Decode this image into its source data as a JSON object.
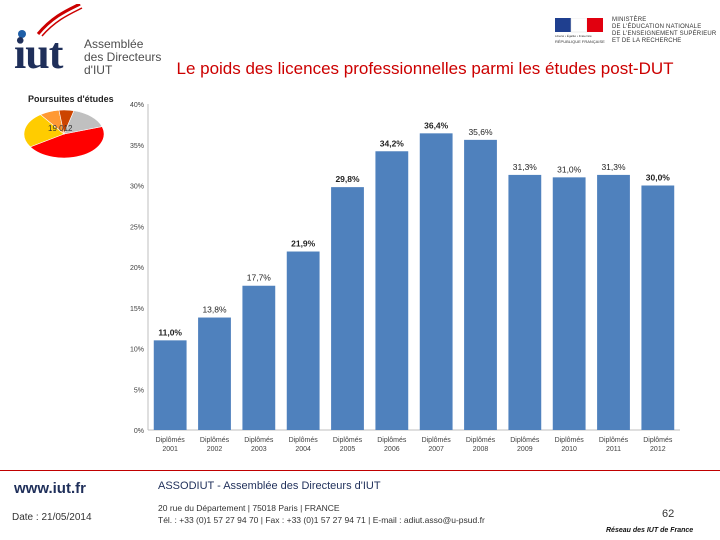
{
  "header": {
    "logo_text": "iut",
    "logo_lines": [
      "Assemblée",
      "des Directeurs",
      "d'IUT"
    ],
    "ministry_lines": [
      "MINISTÈRE",
      "DE L'ÉDUCATION NATIONALE",
      "DE L'ENSEIGNEMENT SUPÉRIEUR",
      "ET DE LA RECHERCHE"
    ],
    "ministry_sub": "Liberté • Égalité • Fraternité",
    "ministry_sub2": "RÉPUBLIQUE FRANÇAISE",
    "title": "Le poids des licences professionnelles parmi les études post-DUT"
  },
  "colors": {
    "bar": "#4f81bd",
    "title": "#cc0000",
    "footer_line": "#c00000"
  },
  "pie": {
    "title": "Poursuites d'études",
    "label": "19 012",
    "slices": [
      {
        "value": 46,
        "color": "#ff0000"
      },
      {
        "value": 24,
        "color": "#ffcc00"
      },
      {
        "value": 8,
        "color": "#ff9933"
      },
      {
        "value": 6,
        "color": "#cc4400"
      },
      {
        "value": 16,
        "color": "#c0c0c0"
      }
    ]
  },
  "chart_data": {
    "type": "bar",
    "title": "",
    "xlabel": "",
    "ylabel": "",
    "ylim": [
      0,
      40
    ],
    "yticks": [
      0,
      5,
      10,
      15,
      20,
      25,
      30,
      35,
      40
    ],
    "ytick_labels": [
      "0%",
      "5%",
      "10%",
      "15%",
      "20%",
      "25%",
      "30%",
      "35%",
      "40%"
    ],
    "categories": [
      [
        "Diplômés",
        "2001"
      ],
      [
        "Diplômés",
        "2002"
      ],
      [
        "Diplômés",
        "2003"
      ],
      [
        "Diplômés",
        "2004"
      ],
      [
        "Diplômés",
        "2005"
      ],
      [
        "Diplômés",
        "2006"
      ],
      [
        "Diplômés",
        "2007"
      ],
      [
        "Diplômés",
        "2008"
      ],
      [
        "Diplômés",
        "2009"
      ],
      [
        "Diplômés",
        "2010"
      ],
      [
        "Diplômés",
        "2011"
      ],
      [
        "Diplômés",
        "2012"
      ]
    ],
    "values": [
      11.0,
      13.8,
      17.7,
      21.9,
      29.8,
      34.2,
      36.4,
      35.6,
      31.3,
      31.0,
      31.3,
      30.0
    ],
    "labels": [
      "11,0%",
      "13,8%",
      "17,7%",
      "21,9%",
      "29,8%",
      "34,2%",
      "36,4%",
      "35,6%",
      "31,3%",
      "31,0%",
      "31,3%",
      "30,0%"
    ],
    "bold_labels": [
      true,
      false,
      false,
      true,
      true,
      true,
      true,
      false,
      false,
      false,
      false,
      true
    ],
    "grid": false,
    "legend": "none"
  },
  "footer": {
    "url": "www.iut.fr",
    "date": "Date : 21/05/2014",
    "assoc": "ASSODIUT - Assemblée des Directeurs d'IUT",
    "address": "20 rue du Département | 75018 Paris | FRANCE",
    "contact": "Tél. : +33 (0)1 57 27 94 70 | Fax : +33 (0)1 57 27 94 71 | E-mail : adiut.asso@u-psud.fr",
    "page": "62",
    "network": "Réseau des IUT de France"
  }
}
